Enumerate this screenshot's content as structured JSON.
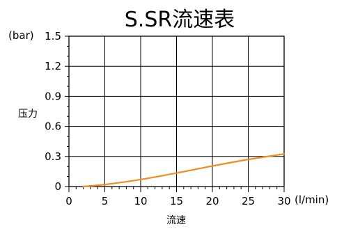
{
  "chart_data": {
    "type": "line",
    "title": "S.SR流速表",
    "xlabel": "流速",
    "ylabel": "压力",
    "x_unit": "(l/min)",
    "y_unit": "(bar)",
    "xlim": [
      0,
      30
    ],
    "ylim": [
      0,
      1.5
    ],
    "x_ticks": [
      "0",
      "5",
      "10",
      "15",
      "20",
      "25",
      "30"
    ],
    "y_ticks": [
      "0",
      "0.3",
      "0.6",
      "0.9",
      "1.2",
      "1.5"
    ],
    "grid": true,
    "line_color": "#f28c1e",
    "series": [
      {
        "x": [
          2,
          5,
          10,
          15,
          20,
          25,
          30
        ],
        "y": [
          0.0,
          0.02,
          0.07,
          0.135,
          0.205,
          0.27,
          0.325
        ]
      }
    ]
  }
}
